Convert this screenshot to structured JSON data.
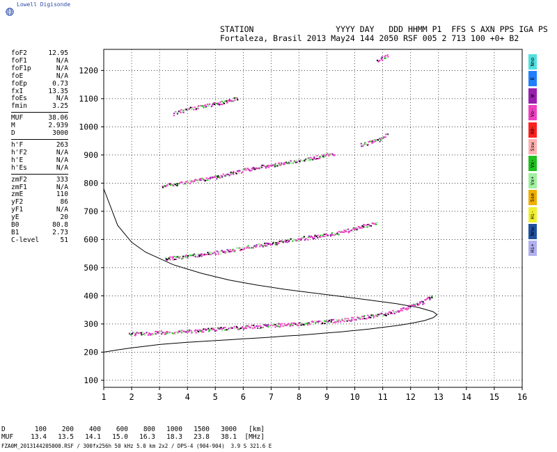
{
  "logo": {
    "text": "Lowell Digisonde",
    "icon": "globe-icon"
  },
  "header": {
    "line1": "STATION                 YYYY DAY   DDD HHMM P1  FFS S AXN PPS IGA PS",
    "line2": "Fortaleza, Brasil 2013 May24 144 2050 RSF 005 2 713 100 +0+ B2"
  },
  "parameters": [
    [
      {
        "k": "foF2",
        "v": "12.95"
      },
      {
        "k": "foF1",
        "v": "N/A"
      },
      {
        "k": "foF1p",
        "v": "N/A"
      },
      {
        "k": "foE",
        "v": "N/A"
      },
      {
        "k": "foEp",
        "v": "0.73"
      },
      {
        "k": "fxI",
        "v": "13.35"
      },
      {
        "k": "foEs",
        "v": "N/A"
      },
      {
        "k": "fmin",
        "v": "3.25"
      }
    ],
    [
      {
        "k": "MUF",
        "v": "38.06"
      },
      {
        "k": "M",
        "v": "2.939"
      },
      {
        "k": "D",
        "v": "3000"
      }
    ],
    [
      {
        "k": "h'F",
        "v": "263"
      },
      {
        "k": "h'F2",
        "v": "N/A"
      },
      {
        "k": "h'E",
        "v": "N/A"
      },
      {
        "k": "h'Es",
        "v": "N/A"
      }
    ],
    [
      {
        "k": "zmF2",
        "v": "333"
      },
      {
        "k": "zmF1",
        "v": "N/A"
      },
      {
        "k": "zmE",
        "v": "110"
      },
      {
        "k": "yF2",
        "v": "86"
      },
      {
        "k": "yF1",
        "v": "N/A"
      },
      {
        "k": "yE",
        "v": "20"
      },
      {
        "k": "B0",
        "v": "80.8"
      },
      {
        "k": "B1",
        "v": "2.73"
      },
      {
        "k": "C-level",
        "v": "51"
      }
    ]
  ],
  "legend": [
    {
      "label": "Nno",
      "color": "#50e0e0"
    },
    {
      "label": "E",
      "color": "#1f7fff"
    },
    {
      "label": "W",
      "color": "#9a1fb0"
    },
    {
      "label": "Vo-",
      "color": "#f040c0"
    },
    {
      "label": "X0-",
      "color": "#ff2020"
    },
    {
      "label": "Ssw",
      "color": "#ffb0b0"
    },
    {
      "label": "Vx-",
      "color": "#20c020"
    },
    {
      "label": "Vx+",
      "color": "#a0f0a0"
    },
    {
      "label": "Sse",
      "color": "#f0b000"
    },
    {
      "label": "Hi-",
      "color": "#f0f030"
    },
    {
      "label": "Nnw",
      "color": "#2050a0"
    },
    {
      "label": "Hi+",
      "color": "#b0b0f0"
    }
  ],
  "footer": {
    "d_label": "D",
    "d_values": [
      "100",
      "200",
      "400",
      "600",
      "800",
      "1000",
      "1500",
      "3000"
    ],
    "d_unit": "[km]",
    "muf_label": "MUF",
    "muf_values": [
      "13.4",
      "13.5",
      "14.1",
      "15.0",
      "16.3",
      "18.3",
      "23.8",
      "38.1"
    ],
    "muf_unit": "[MHz]",
    "file_line": "FZA0M_2013144205000.RSF / 300fx256h 50 kHz 5.0 km 2x2 / DPS-4 (904-904)  3.9 S 321.6 E"
  },
  "chart_data": {
    "type": "scatter",
    "xlim": [
      1,
      16
    ],
    "ylim": [
      75,
      1275
    ],
    "x_ticks": [
      1,
      2,
      3,
      4,
      5,
      6,
      7,
      8,
      9,
      10,
      11,
      12,
      13,
      14,
      15,
      16
    ],
    "y_ticks": [
      100,
      200,
      300,
      400,
      500,
      600,
      700,
      800,
      900,
      1000,
      1100,
      1200
    ],
    "grid": true,
    "series": [
      {
        "trace": "F-trace first hop",
        "x": [
          1.9,
          2.5,
          3.0,
          4.0,
          5.0,
          6.0,
          7.0,
          8.0,
          9.0,
          10.0,
          11.0,
          11.5,
          12.0,
          12.5,
          12.8
        ],
        "y": [
          265,
          265,
          268,
          272,
          280,
          287,
          293,
          300,
          308,
          318,
          333,
          345,
          362,
          380,
          400
        ]
      },
      {
        "trace": "second hop",
        "x": [
          3.2,
          4.0,
          5.0,
          5.8,
          6.3,
          7.0,
          7.7,
          8.5,
          9.3,
          10.0,
          10.8
        ],
        "y": [
          530,
          540,
          552,
          565,
          575,
          585,
          597,
          608,
          620,
          637,
          660
        ]
      },
      {
        "trace": "third hop",
        "x": [
          3.1,
          4.0,
          5.0,
          5.8,
          6.5,
          7.2,
          7.8,
          8.5,
          9.3
        ],
        "y": [
          790,
          803,
          820,
          840,
          855,
          865,
          875,
          890,
          905
        ]
      },
      {
        "trace": "fourth hop",
        "x": [
          3.5,
          4.0,
          5.0,
          5.8,
          10.2,
          10.9,
          11.2
        ],
        "y": [
          1045,
          1062,
          1080,
          1100,
          935,
          955,
          975
        ]
      },
      {
        "trace": "fifth hop",
        "x": [
          10.8,
          11.2
        ],
        "y": [
          1235,
          1252
        ]
      }
    ],
    "profile": {
      "name": "electron density profile",
      "x": [
        1.0,
        1.5,
        2.0,
        2.5,
        3.0,
        3.5,
        4.0,
        4.5,
        5.0,
        5.5,
        6.0,
        6.5,
        7.0,
        7.5,
        8.0,
        8.5,
        9.0,
        9.5,
        10.0,
        10.5,
        11.0,
        11.5,
        12.0,
        12.5,
        12.8,
        12.95,
        12.8,
        12.3,
        11.5,
        10.5,
        9.5,
        8.5,
        7.5,
        6.5,
        5.5,
        4.5,
        3.5,
        2.5,
        2.0,
        1.5,
        1.0
      ],
      "y": [
        200,
        208,
        215,
        221,
        227,
        231,
        235,
        238,
        241,
        244,
        247,
        250,
        253,
        257,
        260,
        264,
        268,
        272,
        277,
        282,
        288,
        294,
        302,
        312,
        322,
        333,
        344,
        358,
        372,
        385,
        398,
        410,
        423,
        438,
        456,
        480,
        510,
        555,
        590,
        650,
        780
      ]
    }
  }
}
